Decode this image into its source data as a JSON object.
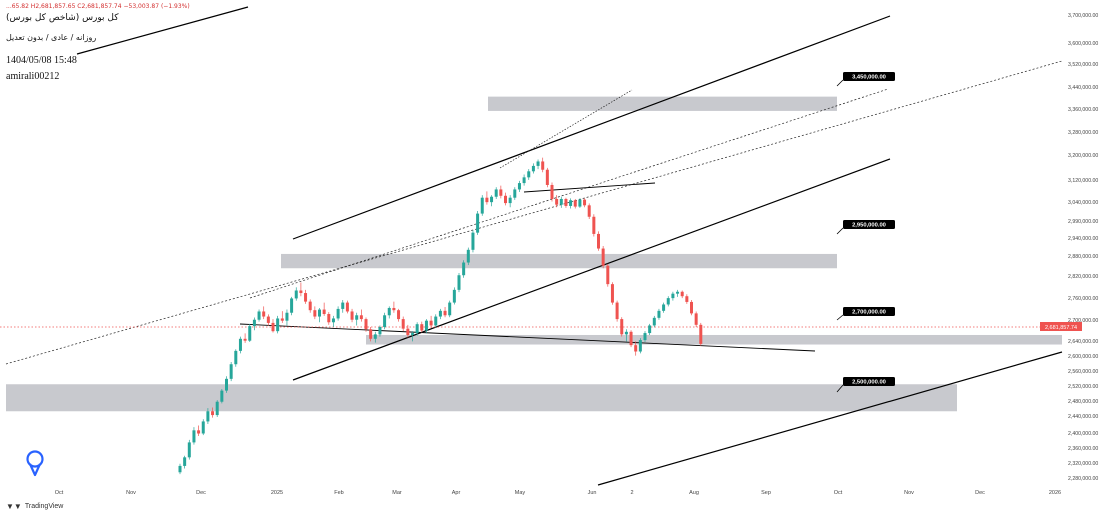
{
  "header": {
    "ohlc": "...65.82  H2,681,857.65  C2,681,857.74  −53,003.87 (−1.93%)",
    "title": "کل بورس (شاخص کل بورس)",
    "subtitle": "روزانه / عادی / بدون تعدیل",
    "datetime": "1404/05/08 15:48",
    "author": "amirali00212"
  },
  "footer": {
    "brand": "TradingView",
    "logo_icon": "tradingview-logo-icon"
  },
  "colors": {
    "up": "#26a69a",
    "down": "#ef5350",
    "zone": "#c5c6cb",
    "trendline": "#000000",
    "price_line": "#ef5350",
    "label_bg": "#000000",
    "label_text": "#ffffff"
  },
  "chart_data": {
    "type": "candlestick",
    "symbol": "کل بورس",
    "current_price_label": "2,681,857.74",
    "y_axis": {
      "ylim": [
        2260000,
        3720000
      ],
      "ticks": [
        "3,700,000.00",
        "3,600,000.00",
        "3,520,000.00",
        "3,440,000.00",
        "3,360,000.00",
        "3,280,000.00",
        "3,200,000.00",
        "3,120,000.00",
        "3,040,000.00",
        "2,990,000.00",
        "2,940,000.00",
        "2,880,000.00",
        "2,820,000.00",
        "2,760,000.00",
        "2,700,000.00",
        "2,640,000.00",
        "2,600,000.00",
        "2,560,000.00",
        "2,520,000.00",
        "2,480,000.00",
        "2,440,000.00",
        "2,400,000.00",
        "2,360,000.00",
        "2,320,000.00",
        "2,280,000.00"
      ]
    },
    "x_axis": {
      "ticks": [
        "Oct",
        "Nov",
        "Dec",
        "2025",
        "Feb",
        "Mar",
        "Apr",
        "May",
        "Jun",
        "2",
        "Aug",
        "Sep",
        "Oct",
        "Nov",
        "Dec",
        "2026"
      ]
    },
    "zones": [
      {
        "label": "3,450,000.00",
        "low": 3415000,
        "high": 3460000
      },
      {
        "label": "2,950,000.00",
        "low": 2920000,
        "high": 2965000
      },
      {
        "label": "2,700,000.00",
        "low": 2680000,
        "high": 2710000
      },
      {
        "label": "2,500,000.00",
        "low": 2470000,
        "high": 2555000
      }
    ],
    "candles": [
      {
        "o": 2278000,
        "h": 2305000,
        "l": 2272000,
        "c": 2298000
      },
      {
        "o": 2298000,
        "h": 2330000,
        "l": 2290000,
        "c": 2325000
      },
      {
        "o": 2325000,
        "h": 2380000,
        "l": 2318000,
        "c": 2372000
      },
      {
        "o": 2372000,
        "h": 2420000,
        "l": 2365000,
        "c": 2410000
      },
      {
        "o": 2410000,
        "h": 2425000,
        "l": 2392000,
        "c": 2400000
      },
      {
        "o": 2400000,
        "h": 2445000,
        "l": 2395000,
        "c": 2438000
      },
      {
        "o": 2438000,
        "h": 2480000,
        "l": 2430000,
        "c": 2470000
      },
      {
        "o": 2470000,
        "h": 2482000,
        "l": 2450000,
        "c": 2458000
      },
      {
        "o": 2458000,
        "h": 2505000,
        "l": 2452000,
        "c": 2500000
      },
      {
        "o": 2500000,
        "h": 2540000,
        "l": 2495000,
        "c": 2535000
      },
      {
        "o": 2535000,
        "h": 2580000,
        "l": 2528000,
        "c": 2572000
      },
      {
        "o": 2572000,
        "h": 2625000,
        "l": 2565000,
        "c": 2618000
      },
      {
        "o": 2618000,
        "h": 2665000,
        "l": 2610000,
        "c": 2660000
      },
      {
        "o": 2660000,
        "h": 2705000,
        "l": 2652000,
        "c": 2698000
      },
      {
        "o": 2698000,
        "h": 2715000,
        "l": 2685000,
        "c": 2692000
      },
      {
        "o": 2692000,
        "h": 2745000,
        "l": 2688000,
        "c": 2738000
      },
      {
        "o": 2738000,
        "h": 2765000,
        "l": 2725000,
        "c": 2758000
      },
      {
        "o": 2758000,
        "h": 2790000,
        "l": 2752000,
        "c": 2784000
      },
      {
        "o": 2784000,
        "h": 2800000,
        "l": 2760000,
        "c": 2768000
      },
      {
        "o": 2768000,
        "h": 2775000,
        "l": 2740000,
        "c": 2748000
      },
      {
        "o": 2748000,
        "h": 2760000,
        "l": 2718000,
        "c": 2722000
      },
      {
        "o": 2722000,
        "h": 2770000,
        "l": 2715000,
        "c": 2762000
      },
      {
        "o": 2762000,
        "h": 2785000,
        "l": 2748000,
        "c": 2755000
      },
      {
        "o": 2755000,
        "h": 2790000,
        "l": 2740000,
        "c": 2780000
      },
      {
        "o": 2780000,
        "h": 2830000,
        "l": 2772000,
        "c": 2825000
      },
      {
        "o": 2825000,
        "h": 2860000,
        "l": 2818000,
        "c": 2850000
      },
      {
        "o": 2850000,
        "h": 2875000,
        "l": 2832000,
        "c": 2842000
      },
      {
        "o": 2842000,
        "h": 2852000,
        "l": 2808000,
        "c": 2815000
      },
      {
        "o": 2815000,
        "h": 2822000,
        "l": 2780000,
        "c": 2788000
      },
      {
        "o": 2788000,
        "h": 2800000,
        "l": 2760000,
        "c": 2768000
      },
      {
        "o": 2768000,
        "h": 2795000,
        "l": 2750000,
        "c": 2790000
      },
      {
        "o": 2790000,
        "h": 2812000,
        "l": 2770000,
        "c": 2776000
      },
      {
        "o": 2776000,
        "h": 2782000,
        "l": 2742000,
        "c": 2750000
      },
      {
        "o": 2750000,
        "h": 2770000,
        "l": 2735000,
        "c": 2762000
      },
      {
        "o": 2762000,
        "h": 2800000,
        "l": 2755000,
        "c": 2792000
      },
      {
        "o": 2792000,
        "h": 2820000,
        "l": 2780000,
        "c": 2812000
      },
      {
        "o": 2812000,
        "h": 2818000,
        "l": 2778000,
        "c": 2784000
      },
      {
        "o": 2784000,
        "h": 2792000,
        "l": 2750000,
        "c": 2758000
      },
      {
        "o": 2758000,
        "h": 2780000,
        "l": 2740000,
        "c": 2772000
      },
      {
        "o": 2772000,
        "h": 2790000,
        "l": 2752000,
        "c": 2760000
      },
      {
        "o": 2760000,
        "h": 2765000,
        "l": 2720000,
        "c": 2728000
      },
      {
        "o": 2728000,
        "h": 2735000,
        "l": 2690000,
        "c": 2698000
      },
      {
        "o": 2698000,
        "h": 2720000,
        "l": 2686000,
        "c": 2712000
      },
      {
        "o": 2712000,
        "h": 2740000,
        "l": 2705000,
        "c": 2735000
      },
      {
        "o": 2735000,
        "h": 2780000,
        "l": 2728000,
        "c": 2772000
      },
      {
        "o": 2772000,
        "h": 2800000,
        "l": 2762000,
        "c": 2795000
      },
      {
        "o": 2795000,
        "h": 2815000,
        "l": 2780000,
        "c": 2788000
      },
      {
        "o": 2788000,
        "h": 2792000,
        "l": 2752000,
        "c": 2760000
      },
      {
        "o": 2760000,
        "h": 2768000,
        "l": 2722000,
        "c": 2730000
      },
      {
        "o": 2730000,
        "h": 2742000,
        "l": 2702000,
        "c": 2710000
      },
      {
        "o": 2710000,
        "h": 2722000,
        "l": 2690000,
        "c": 2716000
      },
      {
        "o": 2716000,
        "h": 2750000,
        "l": 2708000,
        "c": 2744000
      },
      {
        "o": 2744000,
        "h": 2752000,
        "l": 2718000,
        "c": 2724000
      },
      {
        "o": 2724000,
        "h": 2760000,
        "l": 2716000,
        "c": 2755000
      },
      {
        "o": 2755000,
        "h": 2770000,
        "l": 2732000,
        "c": 2740000
      },
      {
        "o": 2740000,
        "h": 2775000,
        "l": 2734000,
        "c": 2768000
      },
      {
        "o": 2768000,
        "h": 2792000,
        "l": 2760000,
        "c": 2786000
      },
      {
        "o": 2786000,
        "h": 2798000,
        "l": 2766000,
        "c": 2772000
      },
      {
        "o": 2772000,
        "h": 2818000,
        "l": 2766000,
        "c": 2812000
      },
      {
        "o": 2812000,
        "h": 2860000,
        "l": 2806000,
        "c": 2852000
      },
      {
        "o": 2852000,
        "h": 2905000,
        "l": 2845000,
        "c": 2898000
      },
      {
        "o": 2898000,
        "h": 2945000,
        "l": 2890000,
        "c": 2938000
      },
      {
        "o": 2938000,
        "h": 2985000,
        "l": 2930000,
        "c": 2978000
      },
      {
        "o": 2978000,
        "h": 3040000,
        "l": 2970000,
        "c": 3032000
      },
      {
        "o": 3032000,
        "h": 3100000,
        "l": 3025000,
        "c": 3092000
      },
      {
        "o": 3092000,
        "h": 3150000,
        "l": 3085000,
        "c": 3142000
      },
      {
        "o": 3142000,
        "h": 3162000,
        "l": 3120000,
        "c": 3128000
      },
      {
        "o": 3128000,
        "h": 3150000,
        "l": 3115000,
        "c": 3145000
      },
      {
        "o": 3145000,
        "h": 3175000,
        "l": 3138000,
        "c": 3168000
      },
      {
        "o": 3168000,
        "h": 3180000,
        "l": 3140000,
        "c": 3148000
      },
      {
        "o": 3148000,
        "h": 3158000,
        "l": 3118000,
        "c": 3125000
      },
      {
        "o": 3125000,
        "h": 3150000,
        "l": 3112000,
        "c": 3142000
      },
      {
        "o": 3142000,
        "h": 3175000,
        "l": 3135000,
        "c": 3168000
      },
      {
        "o": 3168000,
        "h": 3195000,
        "l": 3160000,
        "c": 3188000
      },
      {
        "o": 3188000,
        "h": 3215000,
        "l": 3180000,
        "c": 3206000
      },
      {
        "o": 3206000,
        "h": 3232000,
        "l": 3198000,
        "c": 3225000
      },
      {
        "o": 3225000,
        "h": 3250000,
        "l": 3218000,
        "c": 3242000
      },
      {
        "o": 3242000,
        "h": 3262000,
        "l": 3232000,
        "c": 3256000
      },
      {
        "o": 3256000,
        "h": 3268000,
        "l": 3222000,
        "c": 3230000
      },
      {
        "o": 3230000,
        "h": 3236000,
        "l": 3175000,
        "c": 3182000
      },
      {
        "o": 3182000,
        "h": 3190000,
        "l": 3130000,
        "c": 3138000
      },
      {
        "o": 3138000,
        "h": 3150000,
        "l": 3112000,
        "c": 3120000
      },
      {
        "o": 3120000,
        "h": 3145000,
        "l": 3110000,
        "c": 3138000
      },
      {
        "o": 3138000,
        "h": 3142000,
        "l": 3110000,
        "c": 3116000
      },
      {
        "o": 3116000,
        "h": 3140000,
        "l": 3108000,
        "c": 3134000
      },
      {
        "o": 3134000,
        "h": 3138000,
        "l": 3108000,
        "c": 3114000
      },
      {
        "o": 3114000,
        "h": 3140000,
        "l": 3110000,
        "c": 3136000
      },
      {
        "o": 3136000,
        "h": 3140000,
        "l": 3112000,
        "c": 3118000
      },
      {
        "o": 3118000,
        "h": 3124000,
        "l": 3075000,
        "c": 3082000
      },
      {
        "o": 3082000,
        "h": 3090000,
        "l": 3020000,
        "c": 3028000
      },
      {
        "o": 3028000,
        "h": 3036000,
        "l": 2975000,
        "c": 2982000
      },
      {
        "o": 2982000,
        "h": 2990000,
        "l": 2920000,
        "c": 2928000
      },
      {
        "o": 2928000,
        "h": 2934000,
        "l": 2862000,
        "c": 2870000
      },
      {
        "o": 2870000,
        "h": 2876000,
        "l": 2805000,
        "c": 2812000
      },
      {
        "o": 2812000,
        "h": 2818000,
        "l": 2752000,
        "c": 2760000
      },
      {
        "o": 2760000,
        "h": 2766000,
        "l": 2705000,
        "c": 2712000
      },
      {
        "o": 2712000,
        "h": 2728000,
        "l": 2690000,
        "c": 2720000
      },
      {
        "o": 2720000,
        "h": 2725000,
        "l": 2672000,
        "c": 2678000
      },
      {
        "o": 2678000,
        "h": 2690000,
        "l": 2645000,
        "c": 2658000
      },
      {
        "o": 2658000,
        "h": 2700000,
        "l": 2652000,
        "c": 2694000
      },
      {
        "o": 2694000,
        "h": 2722000,
        "l": 2688000,
        "c": 2716000
      },
      {
        "o": 2716000,
        "h": 2745000,
        "l": 2710000,
        "c": 2740000
      },
      {
        "o": 2740000,
        "h": 2770000,
        "l": 2734000,
        "c": 2764000
      },
      {
        "o": 2764000,
        "h": 2792000,
        "l": 2758000,
        "c": 2786000
      },
      {
        "o": 2786000,
        "h": 2812000,
        "l": 2780000,
        "c": 2806000
      },
      {
        "o": 2806000,
        "h": 2832000,
        "l": 2800000,
        "c": 2826000
      },
      {
        "o": 2826000,
        "h": 2846000,
        "l": 2818000,
        "c": 2840000
      },
      {
        "o": 2840000,
        "h": 2852000,
        "l": 2830000,
        "c": 2846000
      },
      {
        "o": 2846000,
        "h": 2850000,
        "l": 2826000,
        "c": 2832000
      },
      {
        "o": 2832000,
        "h": 2838000,
        "l": 2808000,
        "c": 2814000
      },
      {
        "o": 2814000,
        "h": 2820000,
        "l": 2772000,
        "c": 2778000
      },
      {
        "o": 2778000,
        "h": 2784000,
        "l": 2735000,
        "c": 2742000
      },
      {
        "o": 2742000,
        "h": 2748000,
        "l": 2676000,
        "c": 2682000
      }
    ]
  }
}
